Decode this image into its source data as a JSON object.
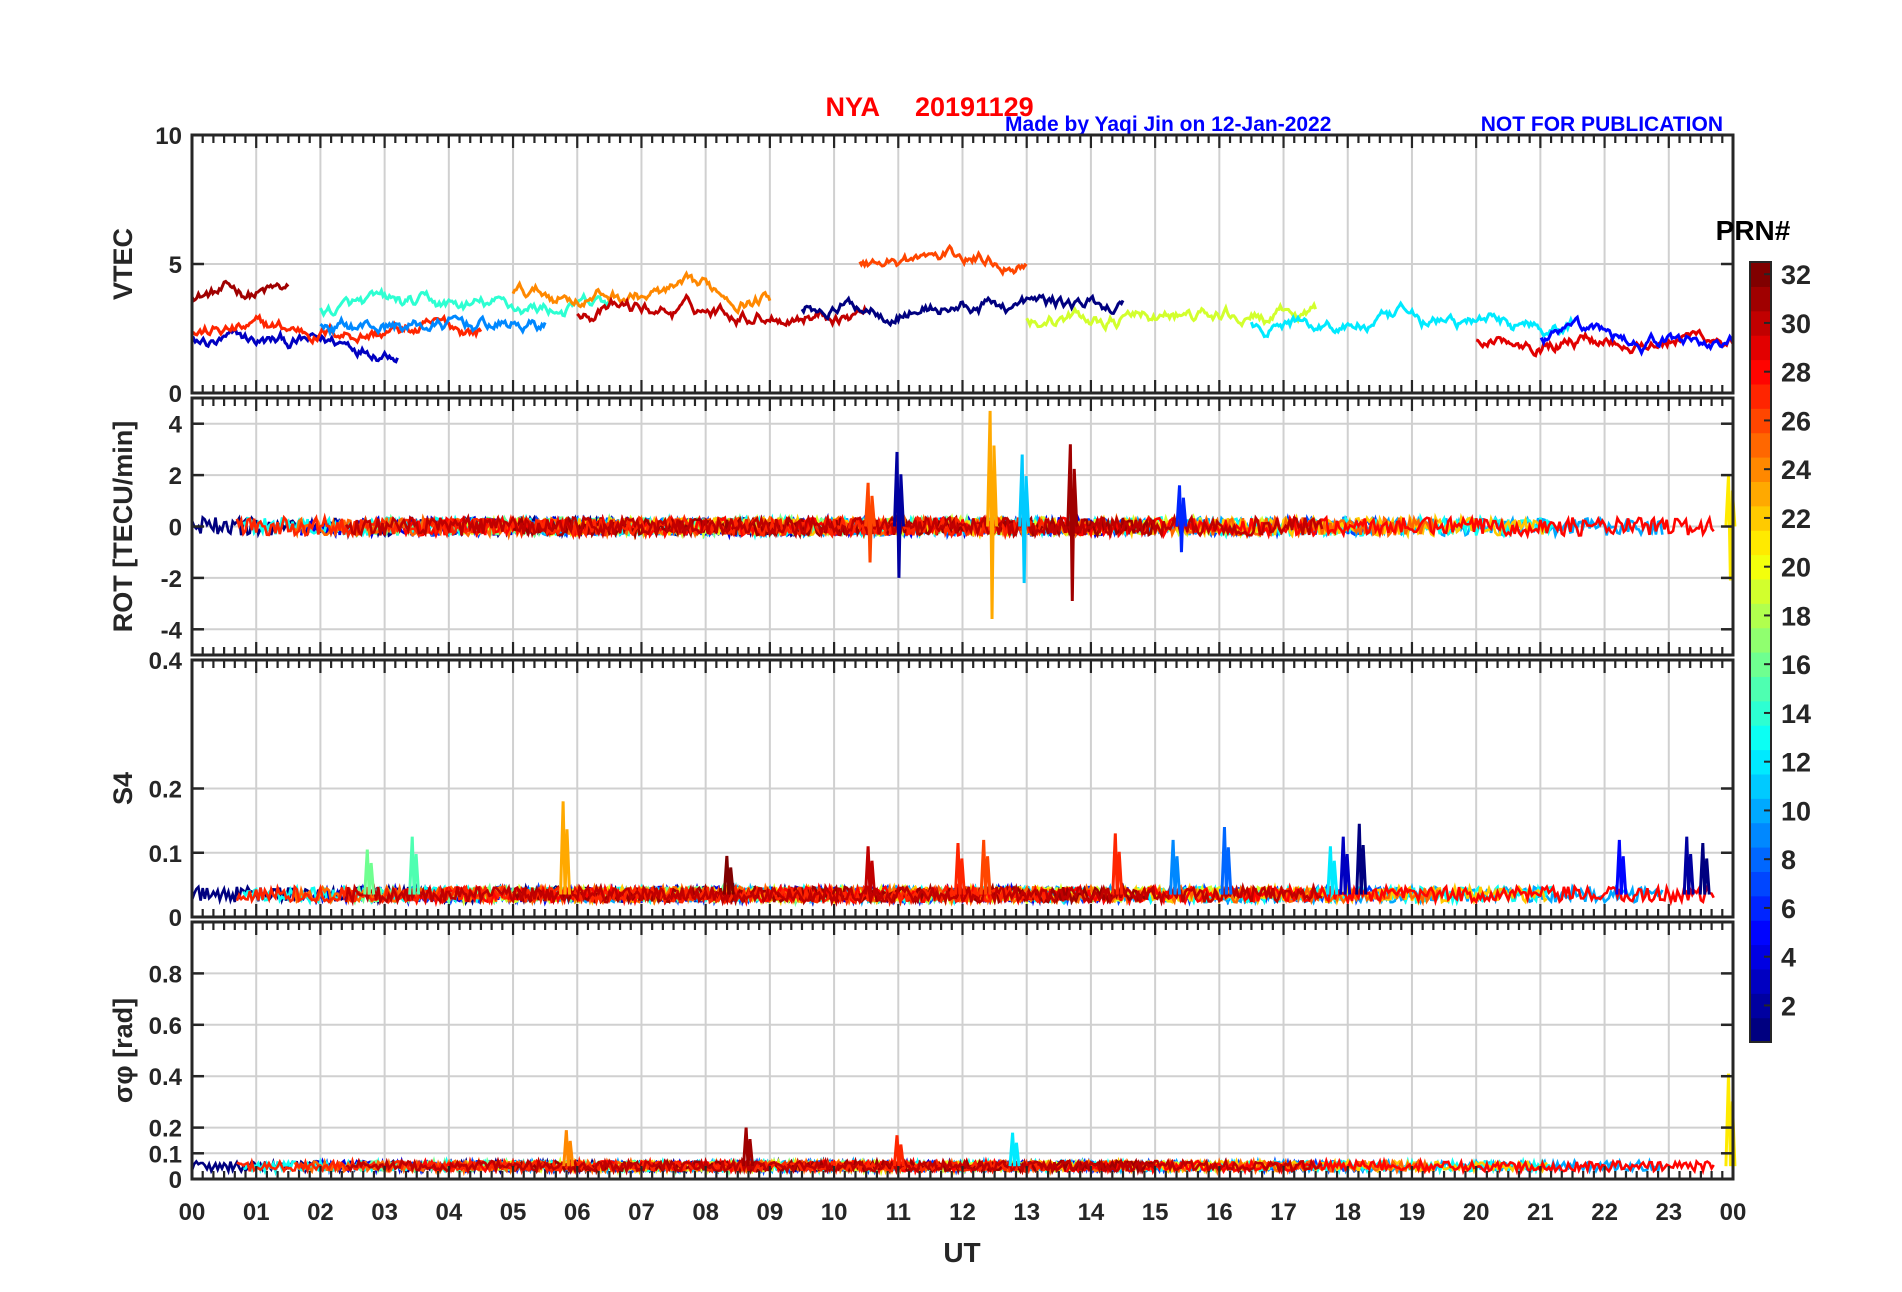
{
  "header": {
    "station": "NYA",
    "date": "20191129",
    "credit": "Made by Yaqi Jin on 12-Jan-2022",
    "notice": "NOT FOR PUBLICATION"
  },
  "colors": {
    "title": "#ff0000",
    "credit": "#0000ff",
    "axis": "#262626",
    "grid": "#d0d0d0"
  },
  "chart_data": {
    "type": "line",
    "xlabel": "UT",
    "x_ticks": [
      "00",
      "01",
      "02",
      "03",
      "04",
      "05",
      "06",
      "07",
      "08",
      "09",
      "10",
      "11",
      "12",
      "13",
      "14",
      "15",
      "16",
      "17",
      "18",
      "19",
      "20",
      "21",
      "22",
      "23",
      "00"
    ],
    "xlim": [
      0,
      24
    ],
    "grid": true,
    "panels": [
      {
        "key": "vtec",
        "ylabel": "VTEC",
        "ylim": [
          0,
          10
        ],
        "ytick_values": [
          0,
          5,
          10
        ],
        "ytick_labels": [
          "0",
          "5",
          "10"
        ],
        "baseline": 2.8,
        "series": [
          {
            "prn": 31,
            "start": 0.0,
            "end": 1.5,
            "level": 3.9
          },
          {
            "prn": 3,
            "start": 0.0,
            "end": 3.2,
            "level": 1.9
          },
          {
            "prn": 27,
            "start": 0.0,
            "end": 4.5,
            "level": 2.4
          },
          {
            "prn": 9,
            "start": 2.0,
            "end": 5.5,
            "level": 2.6
          },
          {
            "prn": 14,
            "start": 2.0,
            "end": 6.5,
            "level": 3.3
          },
          {
            "prn": 24,
            "start": 5.0,
            "end": 9.0,
            "level": 3.8
          },
          {
            "prn": 30,
            "start": 6.0,
            "end": 10.5,
            "level": 3.2
          },
          {
            "prn": 1,
            "start": 9.5,
            "end": 14.5,
            "level": 3.4
          },
          {
            "prn": 26,
            "start": 10.4,
            "end": 13.0,
            "level": 5.2
          },
          {
            "prn": 19,
            "start": 13.0,
            "end": 17.5,
            "level": 2.9
          },
          {
            "prn": 12,
            "start": 16.5,
            "end": 21.5,
            "level": 2.7
          },
          {
            "prn": 29,
            "start": 20.0,
            "end": 24.0,
            "level": 2.2
          },
          {
            "prn": 5,
            "start": 21.0,
            "end": 24.0,
            "level": 2.0
          }
        ]
      },
      {
        "key": "rot",
        "ylabel": "ROT [TECU/min]",
        "ylim": [
          -5,
          5
        ],
        "ytick_values": [
          -4,
          -2,
          0,
          2,
          4
        ],
        "ytick_labels": [
          "-4",
          "-2",
          "0",
          "2",
          "4"
        ],
        "baseline": 0,
        "spikes": [
          {
            "t": 10.55,
            "min": -1.4,
            "max": 1.7,
            "prn": 26
          },
          {
            "t": 11.0,
            "min": -2.0,
            "max": 2.9,
            "prn": 2
          },
          {
            "t": 12.45,
            "min": -3.6,
            "max": 4.5,
            "prn": 23
          },
          {
            "t": 12.95,
            "min": -2.2,
            "max": 2.8,
            "prn": 11
          },
          {
            "t": 13.7,
            "min": -2.9,
            "max": 3.2,
            "prn": 31
          },
          {
            "t": 15.4,
            "min": -1.0,
            "max": 1.6,
            "prn": 6
          },
          {
            "t": 23.95,
            "min": -2.1,
            "max": 2.0,
            "prn": 21
          }
        ]
      },
      {
        "key": "s4",
        "ylabel": "S4",
        "ylim": [
          0,
          0.4
        ],
        "ytick_values": [
          0,
          0.1,
          0.2,
          0.4
        ],
        "ytick_labels": [
          "0",
          "0.1",
          "0.2",
          "0.4"
        ],
        "baseline": 0.035,
        "spikes": [
          {
            "t": 2.75,
            "max": 0.105,
            "prn": 16
          },
          {
            "t": 3.45,
            "max": 0.125,
            "prn": 15
          },
          {
            "t": 5.8,
            "max": 0.18,
            "prn": 23
          },
          {
            "t": 8.35,
            "max": 0.095,
            "prn": 32
          },
          {
            "t": 10.55,
            "max": 0.11,
            "prn": 30
          },
          {
            "t": 11.95,
            "max": 0.115,
            "prn": 27
          },
          {
            "t": 12.35,
            "max": 0.12,
            "prn": 26
          },
          {
            "t": 14.4,
            "max": 0.13,
            "prn": 27
          },
          {
            "t": 15.3,
            "max": 0.12,
            "prn": 9
          },
          {
            "t": 16.1,
            "max": 0.14,
            "prn": 8
          },
          {
            "t": 17.75,
            "max": 0.11,
            "prn": 12
          },
          {
            "t": 17.95,
            "max": 0.125,
            "prn": 3
          },
          {
            "t": 18.2,
            "max": 0.145,
            "prn": 1
          },
          {
            "t": 22.25,
            "max": 0.12,
            "prn": 5
          },
          {
            "t": 23.3,
            "max": 0.125,
            "prn": 2
          },
          {
            "t": 23.55,
            "max": 0.115,
            "prn": 1
          }
        ]
      },
      {
        "key": "sigphi",
        "ylabel": "σφ [rad]",
        "ylim": [
          0,
          1
        ],
        "ytick_values": [
          0,
          0.1,
          0.2,
          0.4,
          0.6,
          0.8
        ],
        "ytick_labels": [
          "0",
          "0.1",
          "0.2",
          "0.4",
          "0.6",
          "0.8"
        ],
        "baseline": 0.05,
        "spikes": [
          {
            "t": 5.85,
            "max": 0.19,
            "prn": 24
          },
          {
            "t": 8.65,
            "max": 0.2,
            "prn": 31
          },
          {
            "t": 11.0,
            "max": 0.17,
            "prn": 27
          },
          {
            "t": 12.8,
            "max": 0.18,
            "prn": 12
          },
          {
            "t": 23.95,
            "max": 0.41,
            "prn": 21
          }
        ]
      }
    ],
    "colorbar": {
      "label": "PRN#",
      "min": 1,
      "max": 32,
      "colormap": "jet",
      "tick_values": [
        2,
        4,
        6,
        8,
        10,
        12,
        14,
        16,
        18,
        20,
        22,
        24,
        26,
        28,
        30,
        32
      ],
      "tick_labels": [
        "2",
        "4",
        "6",
        "8",
        "10",
        "12",
        "14",
        "16",
        "18",
        "20",
        "22",
        "24",
        "26",
        "28",
        "30",
        "32"
      ]
    }
  }
}
